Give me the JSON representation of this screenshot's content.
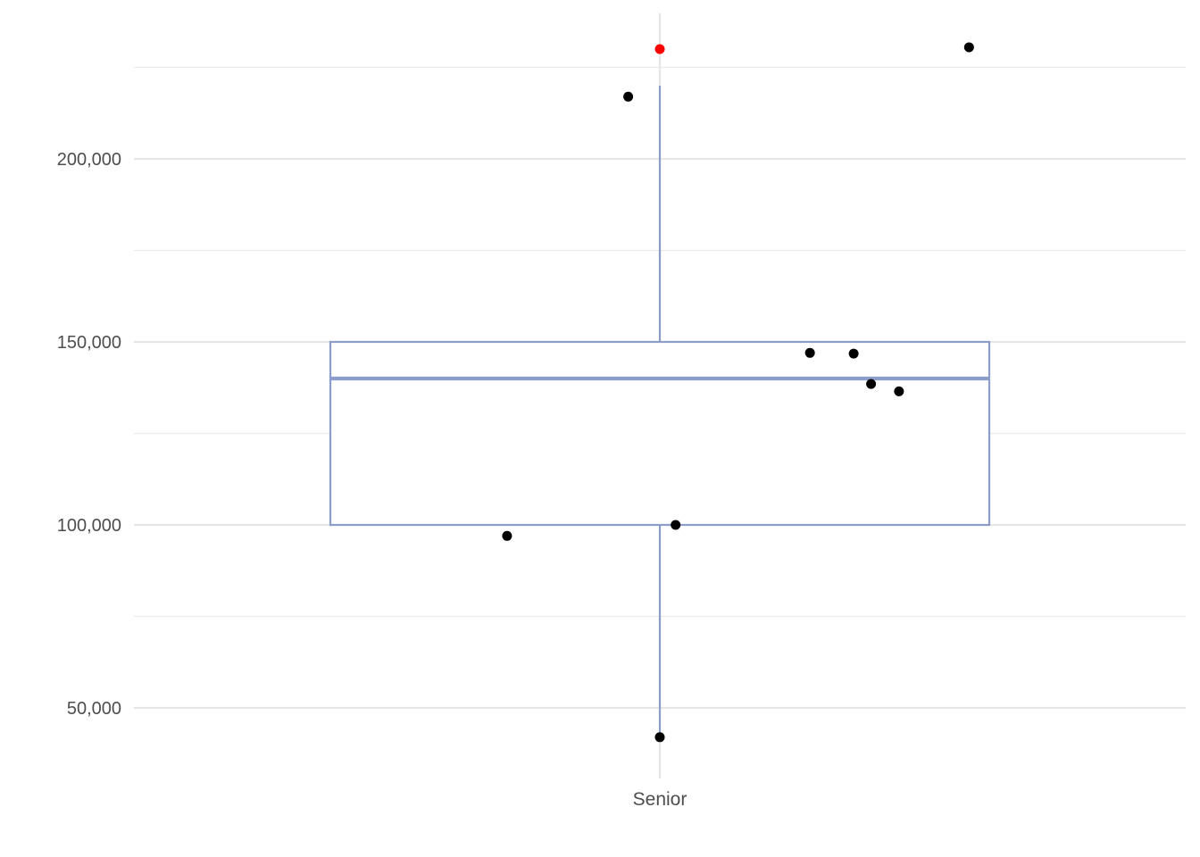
{
  "chart_data": {
    "type": "boxplot",
    "title": "",
    "xlabel": "",
    "ylabel": "",
    "categories": [
      "Senior"
    ],
    "ylim": [
      30000,
      240000
    ],
    "y_ticks": [
      50000,
      100000,
      150000,
      200000
    ],
    "y_tick_labels": [
      "50,000",
      "100,000",
      "150,000",
      "200,000"
    ],
    "grid": true,
    "box": {
      "category": "Senior",
      "q1": 100000,
      "median": 140000,
      "q3": 150000,
      "whisker_low": 42000,
      "whisker_high": 220000,
      "color": "#8b9dc8"
    },
    "points": [
      {
        "x_offset": -0.06,
        "y": 217000
      },
      {
        "x_offset": -0.29,
        "y": 97000
      },
      {
        "x_offset": 0.03,
        "y": 100000
      },
      {
        "x_offset": 0.0,
        "y": 42000
      },
      {
        "x_offset": 0.285,
        "y": 147000
      },
      {
        "x_offset": 0.368,
        "y": 146800
      },
      {
        "x_offset": 0.401,
        "y": 138500
      },
      {
        "x_offset": 0.454,
        "y": 136500
      },
      {
        "x_offset": 0.587,
        "y": 230500
      }
    ],
    "outliers": [
      {
        "y": 230000,
        "color": "#ff0000"
      }
    ],
    "point_color": "#000000"
  }
}
